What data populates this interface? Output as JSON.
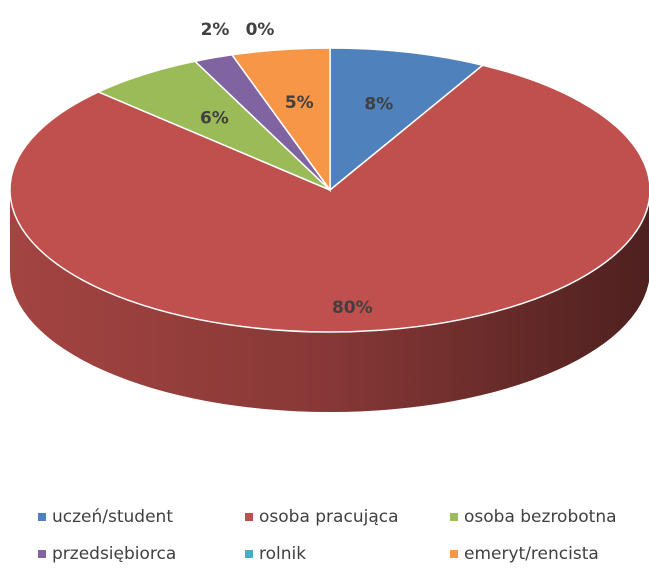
{
  "chart_data": {
    "type": "pie3d",
    "categories": [
      "uczeń/student",
      "osoba pracująca",
      "osoba bezrobotna",
      "przedsiębiorca",
      "rolnik",
      "emeryt/rencista"
    ],
    "values": [
      8,
      80,
      6,
      2,
      0,
      5
    ],
    "value_labels": [
      "8%",
      "80%",
      "6%",
      "2%",
      "0%",
      "5%"
    ],
    "colors": [
      "#4f81bd",
      "#c0504d",
      "#9bbb59",
      "#8064a2",
      "#4bacc6",
      "#f79646"
    ],
    "legend": "bottom"
  }
}
